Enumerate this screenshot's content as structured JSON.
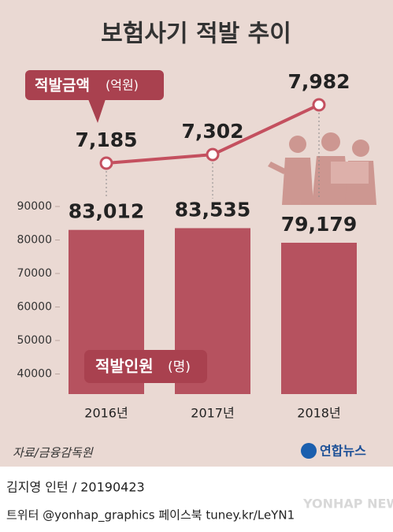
{
  "title": "보험사기 적발 추이",
  "chart_data": [
    {
      "type": "line",
      "label": "적발금액",
      "unit": "(억원)",
      "color": "#c4505f",
      "values": [
        7185,
        7302,
        7982
      ],
      "value_labels": [
        "7,185",
        "7,302",
        "7,982"
      ]
    },
    {
      "type": "bar",
      "label": "적발인원",
      "unit": "(명)",
      "color": "#b6525f",
      "categories": [
        "2016년",
        "2017년",
        "2018년"
      ],
      "values": [
        83012,
        83535,
        79179
      ],
      "value_labels": [
        "83,012",
        "83,535",
        "79,179"
      ],
      "ylim": [
        34000,
        90000
      ],
      "yticks": [
        40000,
        50000,
        60000,
        70000,
        80000,
        90000
      ]
    }
  ],
  "source": "자료/금융감독원",
  "logo": "연합뉴스",
  "byline": "김지영 인턴 / 20190423",
  "social": "트위터 @yonhap_graphics  페이스북 tuney.kr/LeYN1",
  "watermark": "YONHAP NEWS"
}
